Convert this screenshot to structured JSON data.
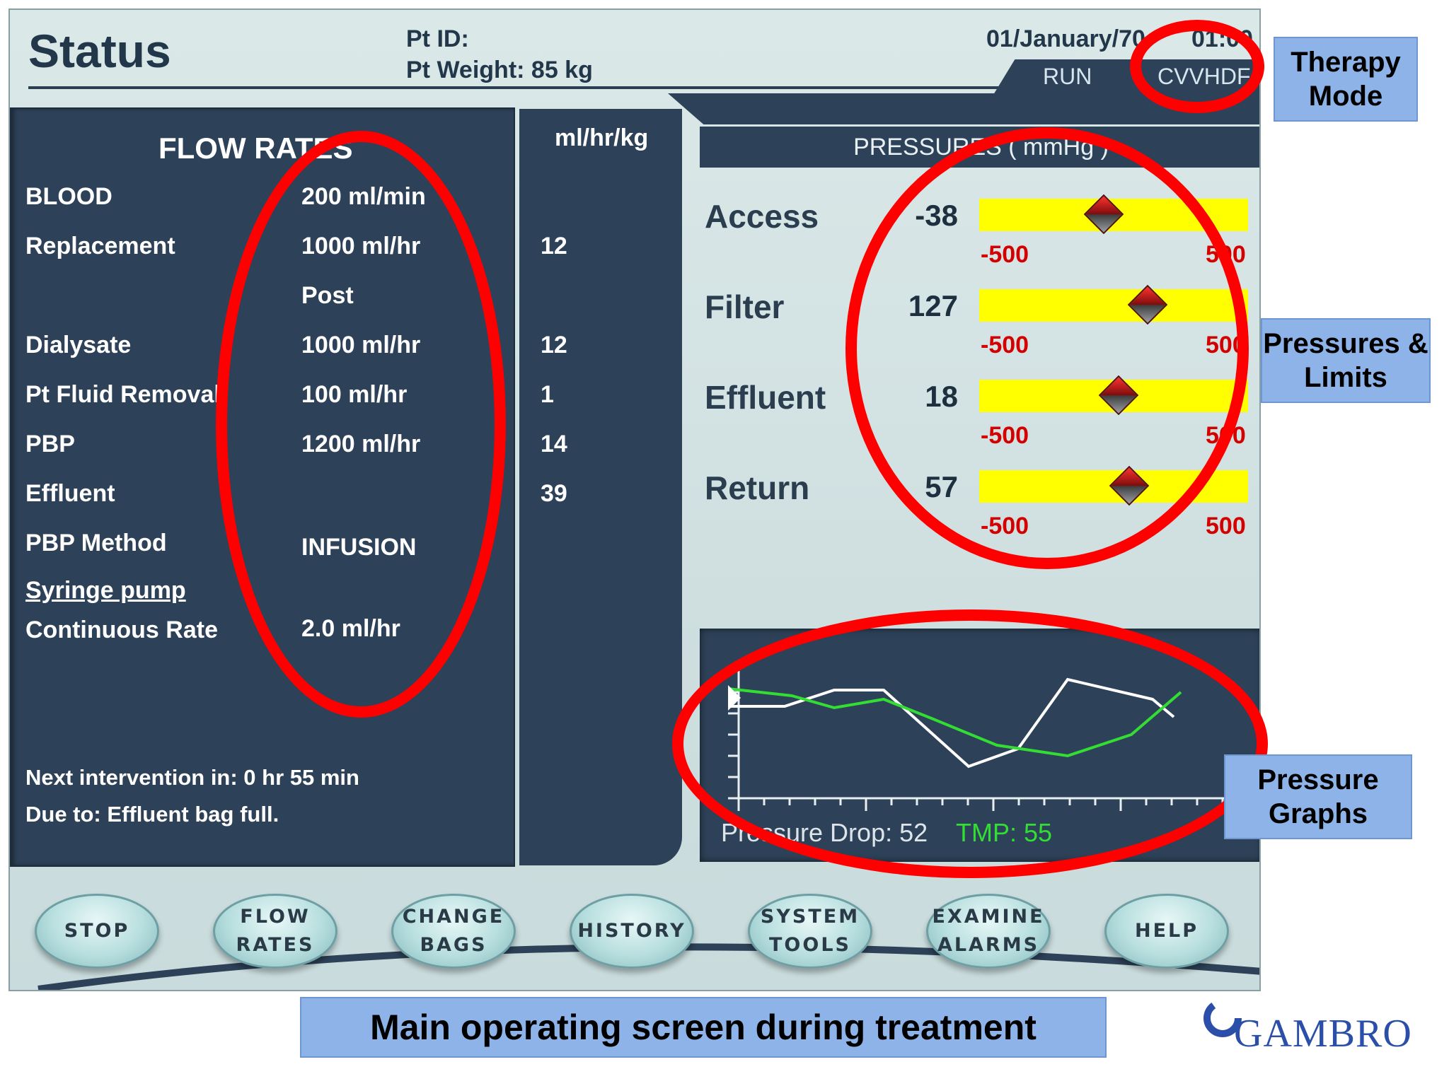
{
  "header": {
    "title": "Status",
    "pt_id_label": "Pt ID:",
    "pt_weight": "Pt Weight: 85 kg",
    "date": "01/January/70",
    "time": "01:00",
    "run_state": "RUN",
    "therapy_mode": "CVVHDF"
  },
  "flow_rates": {
    "title": "FLOW RATES",
    "units_header": "ml/hr/kg",
    "rows": [
      {
        "label": "BLOOD",
        "value": "200 ml/min",
        "per_kg": ""
      },
      {
        "label": "Replacement",
        "value": "1000 ml/hr",
        "per_kg": "12"
      },
      {
        "label": "",
        "value": "Post",
        "per_kg": ""
      },
      {
        "label": "Dialysate",
        "value": "1000 ml/hr",
        "per_kg": "12"
      },
      {
        "label": "Pt Fluid Removal",
        "value": "100 ml/hr",
        "per_kg": "1"
      },
      {
        "label": "PBP",
        "value": "1200 ml/hr",
        "per_kg": "14"
      },
      {
        "label": "Effluent",
        "value": "",
        "per_kg": "39"
      },
      {
        "label": "PBP Method",
        "value": "INFUSION",
        "per_kg": ""
      }
    ],
    "syringe_label": "Syringe pump",
    "continuous_rate_label": "Continuous Rate",
    "continuous_rate_value": "2.0 ml/hr",
    "next_intervention": "Next intervention in: 0 hr 55 min",
    "due_to": "Due to: Effluent bag full."
  },
  "pressures": {
    "title": "PRESSURES ( mmHg )",
    "items": [
      {
        "label": "Access",
        "value": "-38",
        "low": "-500",
        "high": "500",
        "marker_value": -38
      },
      {
        "label": "Filter",
        "value": "127",
        "low": "-500",
        "high": "500",
        "marker_value": 127
      },
      {
        "label": "Effluent",
        "value": "18",
        "low": "-500",
        "high": "500",
        "marker_value": 18
      },
      {
        "label": "Return",
        "value": "57",
        "low": "-500",
        "high": "500",
        "marker_value": 57
      }
    ]
  },
  "graph": {
    "pressure_drop": "Pressure Drop: 52",
    "tmp": "TMP: 55",
    "colors": {
      "pressure_drop": "#ffffff",
      "tmp": "#33dd33"
    }
  },
  "buttons": [
    {
      "line1": "STOP",
      "line2": ""
    },
    {
      "line1": "FLOW",
      "line2": "RATES"
    },
    {
      "line1": "CHANGE",
      "line2": "BAGS"
    },
    {
      "line1": "HISTORY",
      "line2": ""
    },
    {
      "line1": "SYSTEM",
      "line2": "TOOLS"
    },
    {
      "line1": "EXAMINE",
      "line2": "ALARMS"
    },
    {
      "line1": "HELP",
      "line2": ""
    }
  ],
  "callouts": {
    "therapy_mode": "Therapy Mode",
    "pressures_limits": "Pressures & Limits",
    "pressure_graphs": "Pressure Graphs",
    "caption": "Main operating screen during treatment"
  },
  "logo": "GAMBRO",
  "accent_colors": {
    "annotation_red": "#ff0000",
    "panel": "#2d4158",
    "bar_yellow": "#ffff00",
    "callout_blue": "#8db3e8"
  }
}
